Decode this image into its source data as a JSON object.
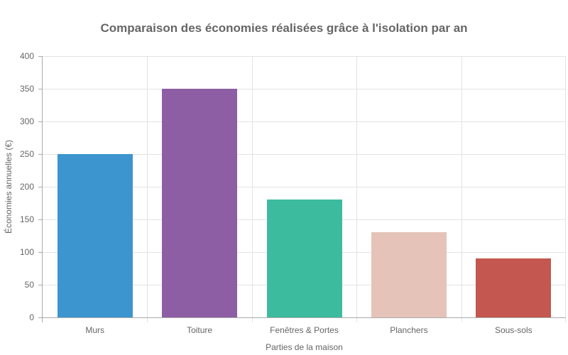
{
  "chart_data": {
    "type": "bar",
    "title": "Comparaison des économies réalisées grâce à l'isolation par an",
    "xlabel": "Parties de la maison",
    "ylabel": "Économies annuelles (€)",
    "categories": [
      "Murs",
      "Toiture",
      "Fenêtres & Portes",
      "Planchers",
      "Sous-sols"
    ],
    "values": [
      250,
      350,
      180,
      130,
      90
    ],
    "colors": [
      "#3d95cf",
      "#8d5ea3",
      "#3dbb9f",
      "#e6c3b9",
      "#c4574f"
    ],
    "ylim": [
      0,
      400
    ],
    "yticks": [
      "0",
      "50",
      "100",
      "150",
      "200",
      "250",
      "300",
      "350",
      "400"
    ],
    "grid": true,
    "legend": "none"
  }
}
